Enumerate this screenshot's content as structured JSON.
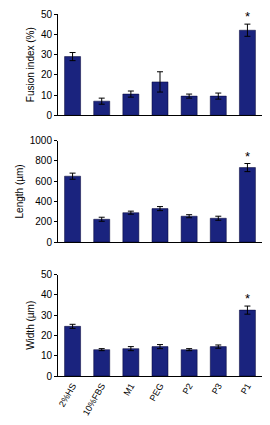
{
  "chart_data": [
    {
      "type": "bar",
      "y_label": "Fusion index (%)",
      "categories": [
        "2%HS",
        "10%FBS",
        "M1",
        "PEG",
        "P2",
        "P3",
        "P1"
      ],
      "values": [
        29,
        7,
        10.5,
        16.5,
        9.5,
        9.5,
        42
      ],
      "errors": [
        2,
        1.5,
        1.5,
        5,
        1,
        1.5,
        3
      ],
      "color": "#1a237e",
      "ylim": [
        0,
        50
      ],
      "yticks": [
        0,
        10,
        20,
        30,
        40,
        50
      ],
      "grid": false,
      "tick_labels": "y",
      "annotations": [
        {
          "category": "P1",
          "text": "*"
        }
      ]
    },
    {
      "type": "bar",
      "y_label": "Length (µm)",
      "categories": [
        "2%HS",
        "10%FBS",
        "M1",
        "PEG",
        "P2",
        "P3",
        "P1"
      ],
      "values": [
        650,
        225,
        290,
        330,
        255,
        235,
        735
      ],
      "errors": [
        30,
        20,
        15,
        20,
        15,
        20,
        40
      ],
      "color": "#1a237e",
      "ylim": [
        0,
        1000
      ],
      "yticks": [
        0,
        200,
        400,
        600,
        800,
        1000
      ],
      "grid": false,
      "tick_labels": "y",
      "annotations": [
        {
          "category": "P1",
          "text": "*"
        }
      ]
    },
    {
      "type": "bar",
      "y_label": "Width (µm)",
      "categories": [
        "2%HS",
        "10%FBS",
        "M1",
        "PEG",
        "P2",
        "P3",
        "P1"
      ],
      "values": [
        24.5,
        13,
        13.5,
        14.5,
        13,
        14.5,
        32.5
      ],
      "errors": [
        1,
        0.5,
        1,
        1,
        0.5,
        0.8,
        2
      ],
      "color": "#1a237e",
      "ylim": [
        0,
        50
      ],
      "yticks": [
        0,
        10,
        20,
        30,
        40,
        50
      ],
      "grid": false,
      "annotations": [
        {
          "category": "P1",
          "text": "*"
        }
      ]
    }
  ]
}
